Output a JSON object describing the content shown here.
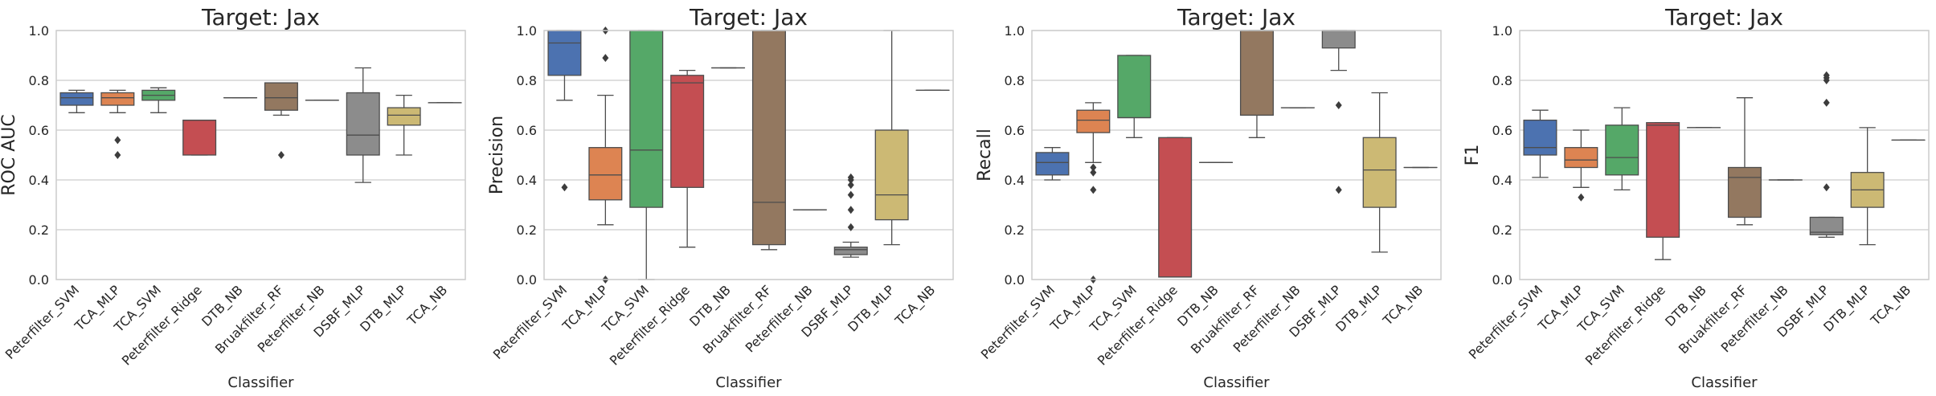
{
  "palette": [
    "#4c72b0",
    "#dd8452",
    "#55a868",
    "#c44e52",
    "#8c8c8c",
    "#937860",
    "#da8bc3",
    "#8172b3",
    "#ccb974",
    "#64b5cd"
  ],
  "colors": {
    "Peterfilter_SVM": "#4c72b0",
    "TCA_MLP": "#dd8452",
    "TCA_SVM": "#55a868",
    "Peterfilter_Ridge": "#c44e52",
    "DTB_NB": "#4c72b0",
    "Bruakfilter_RF": "#937860",
    "Peterfilter_NB": "#8c8c8c",
    "DSBF_MLP": "#8c8c8c",
    "DTB_MLP": "#ccb974",
    "TCA_NB": "#64b5cd"
  },
  "chart_data": [
    {
      "type": "box",
      "title": "Target: Jax",
      "xlabel": "Classifier",
      "ylabel": "ROC AUC",
      "ylim": [
        0,
        1.0
      ],
      "yticks": [
        "0.0",
        "0.2",
        "0.4",
        "0.6",
        "0.8",
        "1.0"
      ],
      "grid": "horizontal",
      "categories": [
        "Peterfilter_SVM",
        "TCA_MLP",
        "TCA_SVM",
        "Peterfilter_Ridge",
        "DTB_NB",
        "Bruakfilter_RF",
        "Peterfilter_NB",
        "DSBF_MLP",
        "DTB_MLP",
        "TCA_NB"
      ],
      "boxes": [
        {
          "whislo": 0.67,
          "q1": 0.7,
          "med": 0.73,
          "q3": 0.75,
          "whishi": 0.76,
          "fliers": []
        },
        {
          "whislo": 0.67,
          "q1": 0.7,
          "med": 0.73,
          "q3": 0.75,
          "whishi": 0.76,
          "fliers": [
            0.5,
            0.56
          ]
        },
        {
          "whislo": 0.67,
          "q1": 0.72,
          "med": 0.74,
          "q3": 0.76,
          "whishi": 0.77,
          "fliers": []
        },
        {
          "whislo": 0.5,
          "q1": 0.5,
          "med": 0.64,
          "q3": 0.64,
          "whishi": 0.64,
          "fliers": []
        },
        {
          "whislo": 0.73,
          "q1": 0.73,
          "med": 0.73,
          "q3": 0.73,
          "whishi": 0.73,
          "fliers": []
        },
        {
          "whislo": 0.66,
          "q1": 0.68,
          "med": 0.73,
          "q3": 0.79,
          "whishi": 0.79,
          "fliers": [
            0.5
          ]
        },
        {
          "whislo": 0.72,
          "q1": 0.72,
          "med": 0.72,
          "q3": 0.72,
          "whishi": 0.72,
          "fliers": []
        },
        {
          "whislo": 0.39,
          "q1": 0.5,
          "med": 0.58,
          "q3": 0.75,
          "whishi": 0.85,
          "fliers": []
        },
        {
          "whislo": 0.5,
          "q1": 0.62,
          "med": 0.66,
          "q3": 0.69,
          "whishi": 0.74,
          "fliers": []
        },
        {
          "whislo": 0.71,
          "q1": 0.71,
          "med": 0.71,
          "q3": 0.71,
          "whishi": 0.71,
          "fliers": []
        }
      ]
    },
    {
      "type": "box",
      "title": "Target: Jax",
      "xlabel": "Classifier",
      "ylabel": "Precision",
      "ylim": [
        0,
        1.0
      ],
      "yticks": [
        "0.0",
        "0.2",
        "0.4",
        "0.6",
        "0.8",
        "1.0"
      ],
      "grid": "horizontal",
      "categories": [
        "Peterfilter_SVM",
        "TCA_MLP",
        "TCA_SVM",
        "Peterfilter_Ridge",
        "DTB_NB",
        "Bruakfilter_RF",
        "Peterfilter_NB",
        "DSBF_MLP",
        "DTB_MLP",
        "TCA_NB"
      ],
      "boxes": [
        {
          "whislo": 0.72,
          "q1": 0.82,
          "med": 0.95,
          "q3": 1.0,
          "whishi": 1.0,
          "fliers": [
            0.37
          ]
        },
        {
          "whislo": 0.22,
          "q1": 0.32,
          "med": 0.42,
          "q3": 0.53,
          "whishi": 0.74,
          "fliers": [
            0.0,
            0.89,
            1.0
          ]
        },
        {
          "whislo": 0.0,
          "q1": 0.29,
          "med": 0.52,
          "q3": 1.0,
          "whishi": 1.0,
          "fliers": []
        },
        {
          "whislo": 0.13,
          "q1": 0.37,
          "med": 0.79,
          "q3": 0.82,
          "whishi": 0.84,
          "fliers": []
        },
        {
          "whislo": 0.85,
          "q1": 0.85,
          "med": 0.85,
          "q3": 0.85,
          "whishi": 0.85,
          "fliers": []
        },
        {
          "whislo": 0.12,
          "q1": 0.14,
          "med": 0.31,
          "q3": 1.0,
          "whishi": 1.0,
          "fliers": []
        },
        {
          "whislo": 0.28,
          "q1": 0.28,
          "med": 0.28,
          "q3": 0.28,
          "whishi": 0.28,
          "fliers": []
        },
        {
          "whislo": 0.09,
          "q1": 0.1,
          "med": 0.12,
          "q3": 0.13,
          "whishi": 0.15,
          "fliers": [
            0.21,
            0.28,
            0.34,
            0.38,
            0.4,
            0.41
          ]
        },
        {
          "whislo": 0.14,
          "q1": 0.24,
          "med": 0.34,
          "q3": 0.6,
          "whishi": 1.0,
          "fliers": []
        },
        {
          "whislo": 0.76,
          "q1": 0.76,
          "med": 0.76,
          "q3": 0.76,
          "whishi": 0.76,
          "fliers": []
        }
      ]
    },
    {
      "type": "box",
      "title": "Target: Jax",
      "xlabel": "Classifier",
      "ylabel": "Recall",
      "ylim": [
        0,
        1.0
      ],
      "yticks": [
        "0.0",
        "0.2",
        "0.4",
        "0.6",
        "0.8",
        "1.0"
      ],
      "grid": "horizontal",
      "categories": [
        "Peterfilter_SVM",
        "TCA_MLP",
        "TCA_SVM",
        "Peterfilter_Ridge",
        "DTB_NB",
        "Bruakfilter_RF",
        "Peterfilter_NB",
        "DSBF_MLP",
        "DTB_MLP",
        "TCA_NB"
      ],
      "boxes": [
        {
          "whislo": 0.4,
          "q1": 0.42,
          "med": 0.47,
          "q3": 0.51,
          "whishi": 0.53,
          "fliers": []
        },
        {
          "whislo": 0.47,
          "q1": 0.59,
          "med": 0.64,
          "q3": 0.68,
          "whishi": 0.71,
          "fliers": [
            0.0,
            0.36,
            0.43,
            0.45
          ]
        },
        {
          "whislo": 0.57,
          "q1": 0.65,
          "med": 0.65,
          "q3": 0.9,
          "whishi": 0.9,
          "fliers": []
        },
        {
          "whislo": 0.01,
          "q1": 0.01,
          "med": 0.01,
          "q3": 0.57,
          "whishi": 0.57,
          "fliers": []
        },
        {
          "whislo": 0.47,
          "q1": 0.47,
          "med": 0.47,
          "q3": 0.47,
          "whishi": 0.47,
          "fliers": []
        },
        {
          "whislo": 0.57,
          "q1": 0.66,
          "med": 1.0,
          "q3": 1.0,
          "whishi": 1.0,
          "fliers": []
        },
        {
          "whislo": 0.69,
          "q1": 0.69,
          "med": 0.69,
          "q3": 0.69,
          "whishi": 0.69,
          "fliers": []
        },
        {
          "whislo": 0.84,
          "q1": 0.93,
          "med": 1.0,
          "q3": 1.0,
          "whishi": 1.0,
          "fliers": [
            0.36,
            0.7
          ]
        },
        {
          "whislo": 0.11,
          "q1": 0.29,
          "med": 0.44,
          "q3": 0.57,
          "whishi": 0.75,
          "fliers": []
        },
        {
          "whislo": 0.45,
          "q1": 0.45,
          "med": 0.45,
          "q3": 0.45,
          "whishi": 0.45,
          "fliers": []
        }
      ]
    },
    {
      "type": "box",
      "title": "Target: Jax",
      "xlabel": "Classifier",
      "ylabel": "F1",
      "ylim": [
        0,
        1.0
      ],
      "yticks": [
        "0.0",
        "0.2",
        "0.4",
        "0.6",
        "0.8",
        "1.0"
      ],
      "grid": "horizontal",
      "categories": [
        "Peterfilter_SVM",
        "TCA_MLP",
        "TCA_SVM",
        "Peterfilter_Ridge",
        "DTB_NB",
        "Bruakfilter_RF",
        "Peterfilter_NB",
        "DSBF_MLP",
        "DTB_MLP",
        "TCA_NB"
      ],
      "boxes": [
        {
          "whislo": 0.41,
          "q1": 0.5,
          "med": 0.53,
          "q3": 0.64,
          "whishi": 0.68,
          "fliers": []
        },
        {
          "whislo": 0.37,
          "q1": 0.45,
          "med": 0.48,
          "q3": 0.53,
          "whishi": 0.6,
          "fliers": [
            0.33
          ]
        },
        {
          "whislo": 0.36,
          "q1": 0.42,
          "med": 0.49,
          "q3": 0.62,
          "whishi": 0.69,
          "fliers": []
        },
        {
          "whislo": 0.08,
          "q1": 0.17,
          "med": 0.62,
          "q3": 0.63,
          "whishi": 0.63,
          "fliers": []
        },
        {
          "whislo": 0.61,
          "q1": 0.61,
          "med": 0.61,
          "q3": 0.61,
          "whishi": 0.61,
          "fliers": []
        },
        {
          "whislo": 0.22,
          "q1": 0.25,
          "med": 0.41,
          "q3": 0.45,
          "whishi": 0.73,
          "fliers": []
        },
        {
          "whislo": 0.4,
          "q1": 0.4,
          "med": 0.4,
          "q3": 0.4,
          "whishi": 0.4,
          "fliers": []
        },
        {
          "whislo": 0.17,
          "q1": 0.18,
          "med": 0.19,
          "q3": 0.25,
          "whishi": 0.25,
          "fliers": [
            0.37,
            0.71,
            0.8,
            0.81,
            0.82
          ]
        },
        {
          "whislo": 0.14,
          "q1": 0.29,
          "med": 0.36,
          "q3": 0.43,
          "whishi": 0.61,
          "fliers": []
        },
        {
          "whislo": 0.56,
          "q1": 0.56,
          "med": 0.56,
          "q3": 0.56,
          "whishi": 0.56,
          "fliers": []
        }
      ]
    }
  ]
}
